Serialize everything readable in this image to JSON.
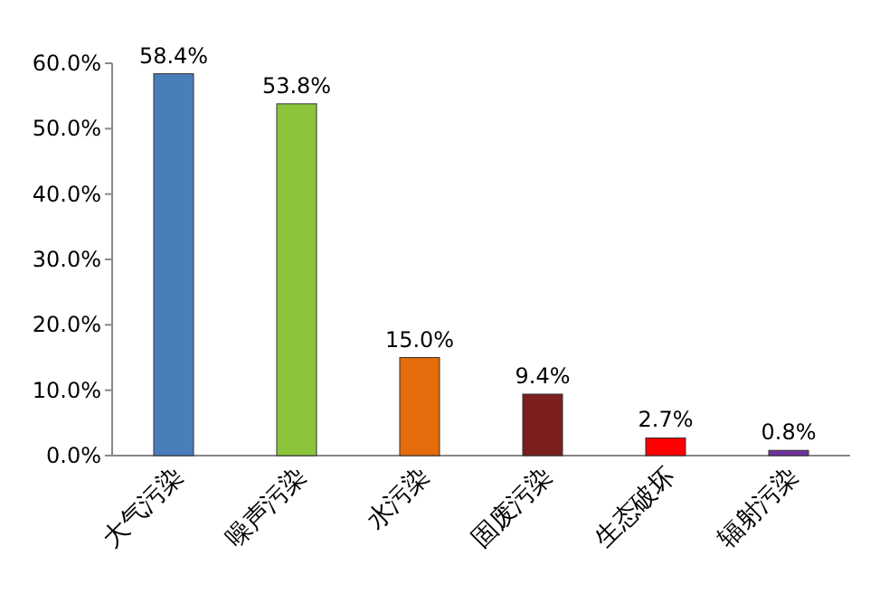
{
  "chart_data": {
    "type": "bar",
    "categories": [
      "大气污染",
      "噪声污染",
      "水污染",
      "固废污染",
      "生态破坏",
      "辐射污染"
    ],
    "values": [
      58.4,
      53.8,
      15.0,
      9.4,
      2.7,
      0.8
    ],
    "value_labels": [
      "58.4%",
      "53.8%",
      "15.0%",
      "9.4%",
      "2.7%",
      "0.8%"
    ],
    "colors": [
      "#4a7ebb",
      "#8cc43c",
      "#e46c0a",
      "#7a1e1e",
      "#ff0000",
      "#7030a0"
    ],
    "ylim": [
      0,
      60
    ],
    "yticks": [
      {
        "value": 0,
        "label": "0.0%"
      },
      {
        "value": 10,
        "label": "10.0%"
      },
      {
        "value": 20,
        "label": "20.0%"
      },
      {
        "value": 30,
        "label": "30.0%"
      },
      {
        "value": 40,
        "label": "40.0%"
      },
      {
        "value": 50,
        "label": "50.0%"
      },
      {
        "value": 60,
        "label": "60.0%"
      }
    ]
  }
}
